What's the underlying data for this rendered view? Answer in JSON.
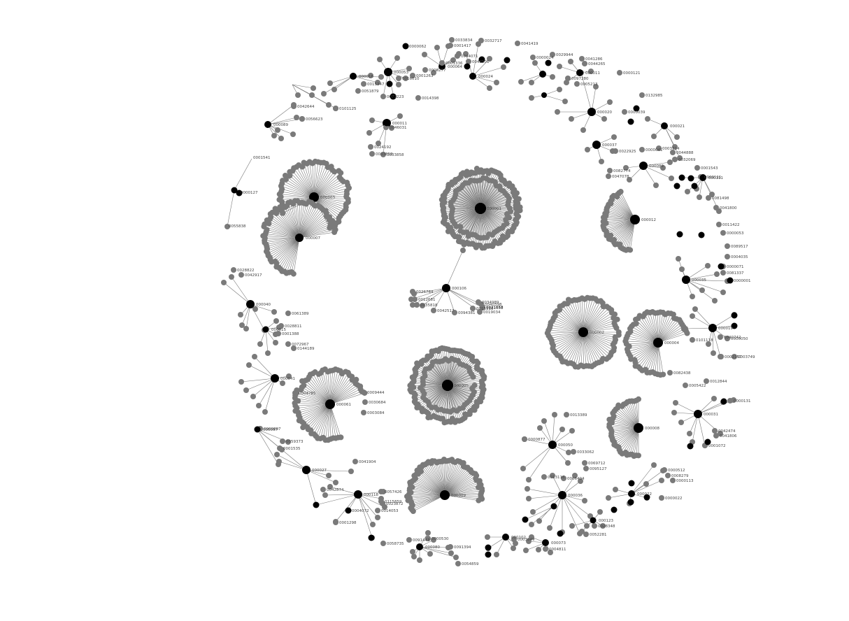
{
  "graph": {
    "colors": {
      "background": "#ffffff",
      "hub_node": "#000000",
      "leaf_node": "#7a7a7a",
      "edge": "#777777",
      "label": "#444444"
    },
    "labels": {
      "n_big_center": "000001",
      "n_mid_left_a": "000003",
      "n_mid_left_b": "000007",
      "n_cluster_right": "000002",
      "n_cluster_right2": "000004",
      "n_cluster_lower": "000005",
      "n_cluster_bottom": "000009",
      "n_cluster_left_low": "000061",
      "n_bridge": "000106",
      "n_right_hub": "000012",
      "n_low_right": "000008",
      "n_top1": "000053",
      "n_top2": "000016",
      "n_top3": "000064",
      "n_top4": "000024",
      "n_top5": "000011",
      "n_topright1": "000020",
      "n_topright2": "000037",
      "n_left1": "000040",
      "n_left2": "000015",
      "n_left3": "000041",
      "n_left4": "000097",
      "n_bl1": "000027",
      "n_bl2": "000118",
      "n_bl3": "000050",
      "n_bl4": "000036",
      "n_r1": "000021",
      "n_r2": "000019",
      "n_r3": "000031",
      "n_r4": "000035",
      "n_r5": "000111",
      "n_r6": "000089",
      "n_b1": "000102",
      "n_b2": "000080",
      "n_b3": "000123",
      "n_b4": "000022",
      "n_b5": "000073",
      "n_tl1": "000062",
      "n_tl2": "000089",
      "s001": "0001541",
      "s002": "0000127",
      "s003": "0055838",
      "s004": "0042917",
      "s005": "0028822",
      "s006": "0061389",
      "s007": "0028811",
      "s008": "0001388",
      "s009": "0072967",
      "s010": "0144189",
      "s011": "0009444",
      "s012": "0030684",
      "s013": "0003084",
      "s014": "0004785",
      "s015": "0041904",
      "s016": "0057426",
      "s017": "0115859",
      "s018": "0023872",
      "s019": "0014053",
      "s020": "0091443",
      "s021": "0000530",
      "s022": "0091394",
      "s023": "0054859",
      "s024": "0000876",
      "s025": "0005326",
      "s026": "0003849",
      "s027": "0000877",
      "s028": "0013389",
      "s029": "0033062",
      "s030": "0095127",
      "s031": "0069712",
      "s032": "0006404",
      "s033": "0013116",
      "s034": "0000022",
      "s035": "0008279",
      "s036": "0000113",
      "s037": "0000512",
      "s038": "0052281",
      "s039": "0028348",
      "s040": "0004811",
      "s041": "0042474",
      "s042": "0041806",
      "s043": "0001072",
      "s044": "0000131",
      "s045": "0003749",
      "s046": "0002157",
      "s047": "0001187",
      "s048": "0012844",
      "s049": "0005422",
      "s050": "0082438",
      "s051": "0101118",
      "s052": "0040742",
      "s053": "0000050",
      "s054": "0000001",
      "s055": "0081337",
      "s056": "0000071",
      "s057": "0004035",
      "s058": "0089517",
      "s059": "0000053",
      "s060": "0011422",
      "s061": "0041800",
      "s062": "0081498",
      "s063": "0000111",
      "s064": "0001543",
      "s065": "0032069",
      "s066": "0044888",
      "s067": "0000035",
      "s068": "0132985",
      "s069": "0041286",
      "s070": "0044265",
      "s071": "0000121",
      "s072": "0029944",
      "s073": "0041419",
      "s074": "0032717",
      "s075": "0033834",
      "s076": "0001417",
      "s077": "0000062",
      "s078": "0101125",
      "s079": "0056623",
      "s080": "0042644",
      "s081": "0034899",
      "s082": "0033858",
      "s083": "0024192",
      "s084": "0046031",
      "s085": "0071223",
      "s086": "0014398",
      "s087": "0026784",
      "s088": "0012681",
      "s089": "0035818",
      "s090": "0094381",
      "s091": "0042517",
      "s092": "0040398",
      "s093": "0021658",
      "s094": "0019034",
      "s095": "0015310",
      "s096": "0034989",
      "s097": "0042874",
      "s098": "0000897",
      "s099": "0059373",
      "s100": "0001535",
      "s101": "0001298",
      "s102": "0058735",
      "s103": "0004072",
      "s104": "0051879",
      "s105": "0015347",
      "s106": "0016010",
      "s107": "0001263",
      "s108": "0006277",
      "s109": "0001336",
      "s110": "0044071",
      "s111": "0042501",
      "s112": "0000024",
      "s113": "0097280",
      "s114": "0005213",
      "s115": "0000041",
      "s116": "0022925",
      "s117": "0082774",
      "s118": "0047078",
      "s119": "0003714",
      "s120": "0000039"
    }
  }
}
